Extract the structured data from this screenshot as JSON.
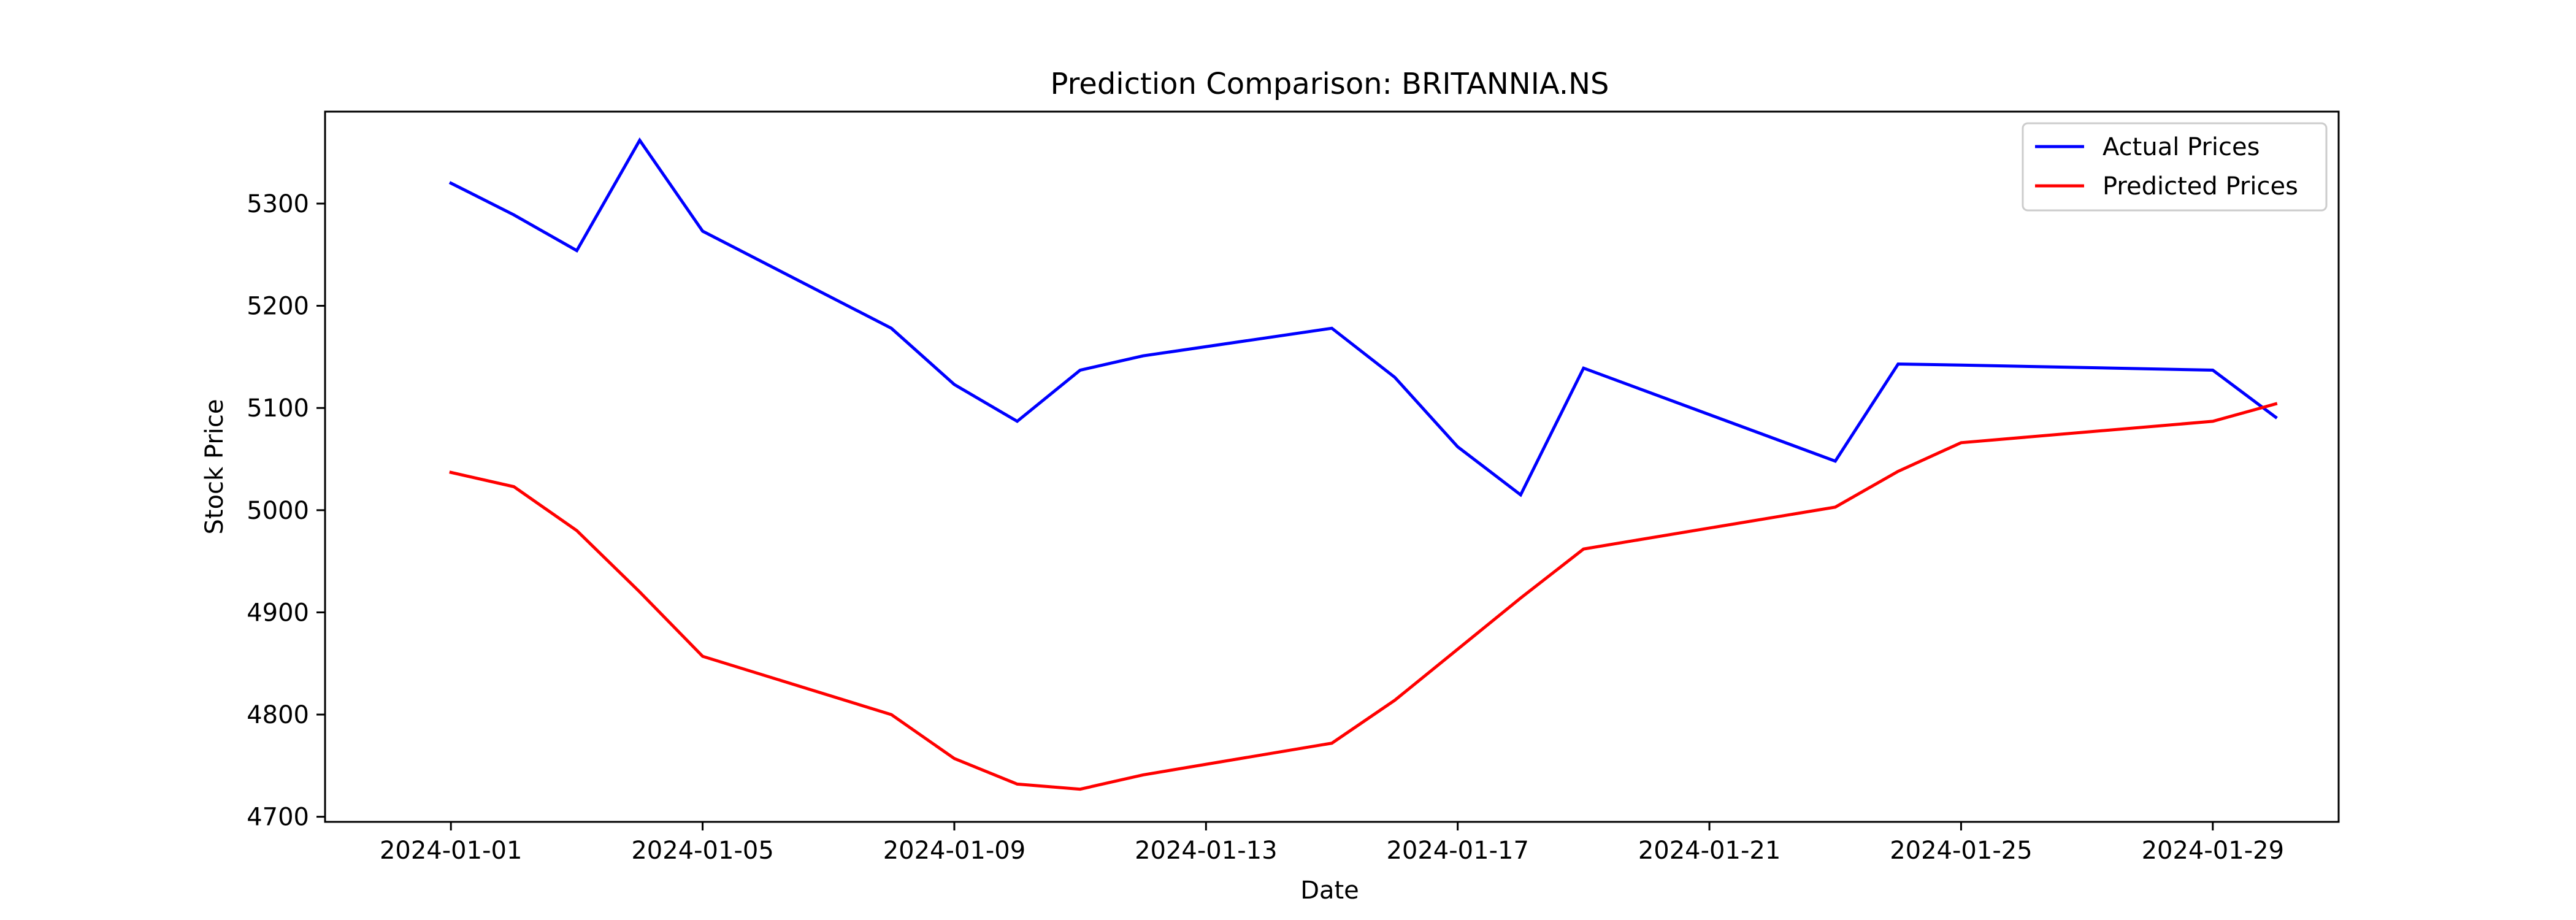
{
  "chart_data": {
    "type": "line",
    "title": "Prediction Comparison: BRITANNIA.NS",
    "xlabel": "Date",
    "ylabel": "Stock Price",
    "xlim": [
      "2023-12-30",
      "2024-01-31"
    ],
    "ylim": [
      4695,
      5390
    ],
    "x_ticks": [
      "2024-01-01",
      "2024-01-05",
      "2024-01-09",
      "2024-01-13",
      "2024-01-17",
      "2024-01-21",
      "2024-01-25",
      "2024-01-29"
    ],
    "y_ticks": [
      4700,
      4800,
      4900,
      5000,
      5100,
      5200,
      5300
    ],
    "grid": false,
    "legend_position": "top-right",
    "series": [
      {
        "name": "Actual Prices",
        "color": "#0000ff",
        "x": [
          "2024-01-01",
          "2024-01-02",
          "2024-01-03",
          "2024-01-04",
          "2024-01-05",
          "2024-01-08",
          "2024-01-09",
          "2024-01-10",
          "2024-01-11",
          "2024-01-12",
          "2024-01-15",
          "2024-01-16",
          "2024-01-17",
          "2024-01-18",
          "2024-01-19",
          "2024-01-23",
          "2024-01-24",
          "2024-01-25",
          "2024-01-29",
          "2024-01-30"
        ],
        "values": [
          5320,
          5289,
          5254,
          5362,
          5273,
          5178,
          5123,
          5087,
          5137,
          5151,
          5178,
          5130,
          5062,
          5015,
          5139,
          5048,
          5143,
          5142,
          5137,
          5091
        ]
      },
      {
        "name": "Predicted Prices",
        "color": "#ff0000",
        "x": [
          "2024-01-01",
          "2024-01-02",
          "2024-01-03",
          "2024-01-04",
          "2024-01-05",
          "2024-01-08",
          "2024-01-09",
          "2024-01-10",
          "2024-01-11",
          "2024-01-12",
          "2024-01-15",
          "2024-01-16",
          "2024-01-17",
          "2024-01-18",
          "2024-01-19",
          "2024-01-23",
          "2024-01-24",
          "2024-01-25",
          "2024-01-29",
          "2024-01-30"
        ],
        "values": [
          5037,
          5023,
          4980,
          4920,
          4857,
          4800,
          4757,
          4732,
          4727,
          4741,
          4772,
          4814,
          4864,
          4914,
          4962,
          5003,
          5038,
          5066,
          5087,
          5104
        ]
      }
    ]
  }
}
